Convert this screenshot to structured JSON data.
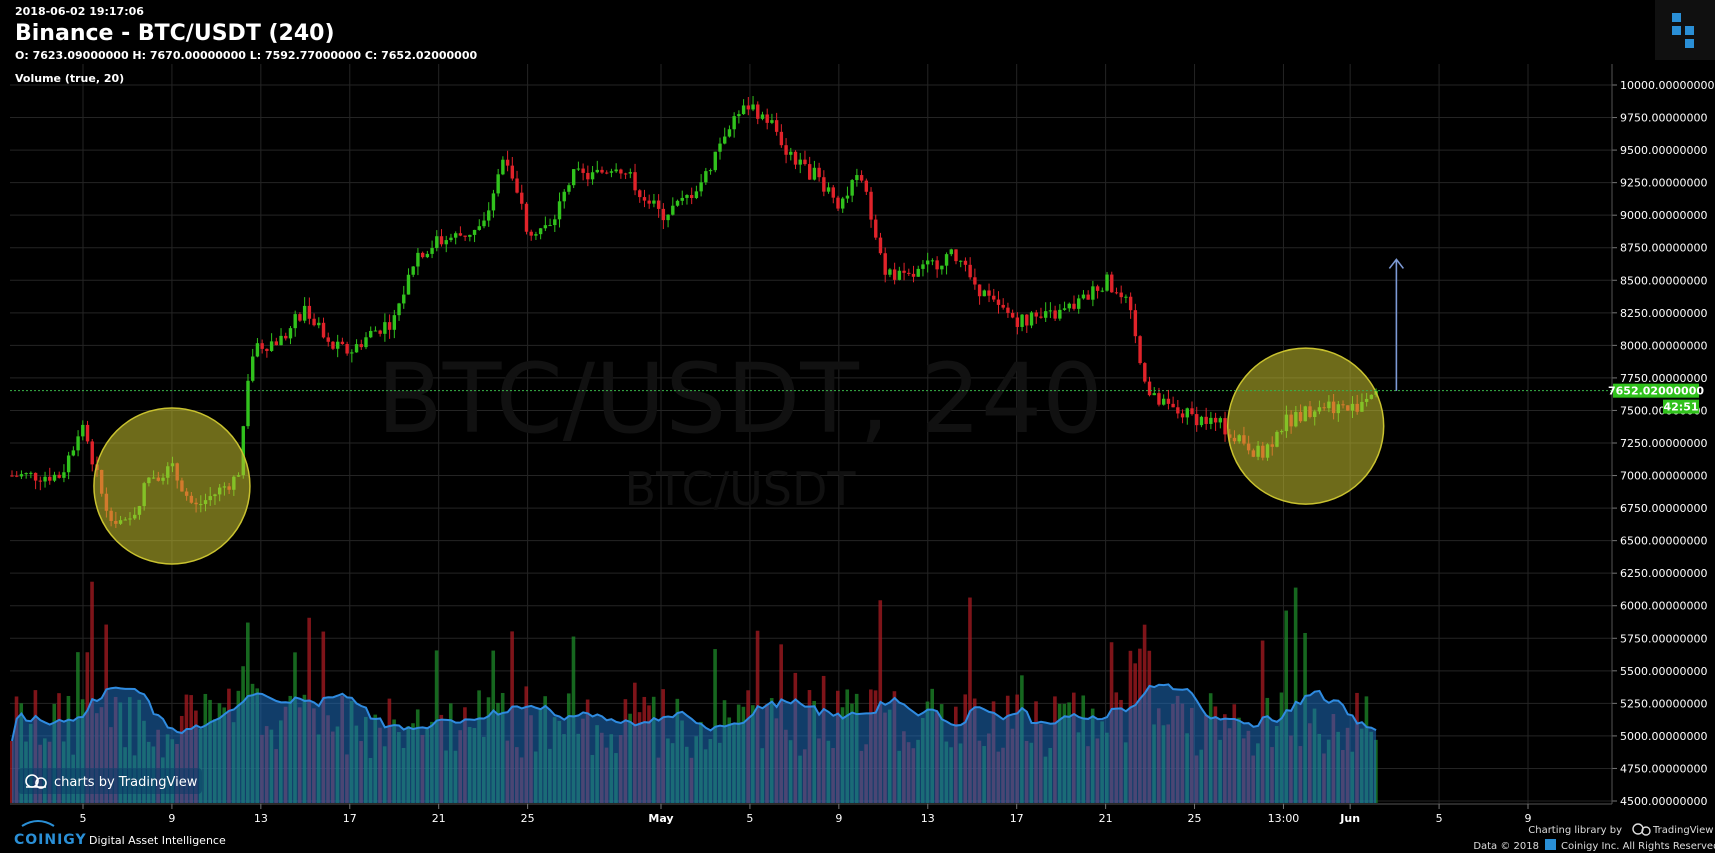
{
  "header": {
    "timestamp": "2018-06-02 19:17:06",
    "title": "Binance - BTC/USDT (240)",
    "ohlc": "O: 7623.09000000 H: 7670.00000000 L: 7592.77000000 C: 7652.02000000",
    "volume_label": "Volume (true, 20)"
  },
  "watermark": {
    "line1": "BTC/USDT, 240",
    "line2": "BTC/USDT"
  },
  "price_badge": {
    "value": "7652.02000000",
    "countdown": "42:51"
  },
  "footer": {
    "brand": "COINIGY",
    "tagline": "Digital Asset Intelligence",
    "charting_library": "Charting library by",
    "tradingview": "TradingView",
    "copyright": "Data © 2018",
    "rights": "Coinigy Inc. All Rights Reserved.",
    "charts_by": "charts by TradingView"
  },
  "colors": {
    "background": "#000000",
    "up": "#31c21d",
    "down": "#e0232a",
    "grid": "#242424",
    "volume_ma_fill": "#1f6fbf",
    "highlight_circle": "#c9c22f",
    "last_price_line": "#39b54a",
    "arrow": "#7d9ad6"
  },
  "icons": [
    "coinigy-logo-icon",
    "tradingview-cloud-icon",
    "coinigy-small-icon"
  ],
  "chart_data": {
    "type": "candlestick",
    "title": "Binance - BTC/USDT (240)",
    "ylim": [
      4500,
      10100
    ],
    "y_ticks": [
      4500,
      4750,
      5000,
      5250,
      5500,
      5750,
      6000,
      6250,
      6500,
      6750,
      7000,
      7250,
      7500,
      7750,
      8000,
      8250,
      8500,
      8750,
      9000,
      9250,
      9500,
      9750,
      10000
    ],
    "y_tick_labels": [
      "4500.00000000",
      "4750.00000000",
      "5000.00000000",
      "5250.00000000",
      "5500.00000000",
      "5750.00000000",
      "6000.00000000",
      "6250.00000000",
      "6500.00000000",
      "6750.00000000",
      "7000.00000000",
      "7250.00000000",
      "7500.00000000",
      "7750.00000000",
      "8000.00000000",
      "8250.00000000",
      "8500.00000000",
      "8750.00000000",
      "9000.00000000",
      "9250.00000000",
      "9500.00000000",
      "9750.00000000",
      "10000.00000000"
    ],
    "x_ticks": [
      {
        "label": "5",
        "date": "2018-04-05"
      },
      {
        "label": "9",
        "date": "2018-04-09"
      },
      {
        "label": "13",
        "date": "2018-04-13"
      },
      {
        "label": "17",
        "date": "2018-04-17"
      },
      {
        "label": "21",
        "date": "2018-04-21"
      },
      {
        "label": "25",
        "date": "2018-04-25"
      },
      {
        "label": "May",
        "date": "2018-05-01"
      },
      {
        "label": "5",
        "date": "2018-05-05"
      },
      {
        "label": "9",
        "date": "2018-05-09"
      },
      {
        "label": "13",
        "date": "2018-05-13"
      },
      {
        "label": "17",
        "date": "2018-05-17"
      },
      {
        "label": "21",
        "date": "2018-05-21"
      },
      {
        "label": "25",
        "date": "2018-05-25"
      },
      {
        "label": "13:00",
        "date": "2018-05-29"
      },
      {
        "label": "Jun",
        "date": "2018-06-01"
      },
      {
        "label": "5",
        "date": "2018-06-05"
      },
      {
        "label": "9",
        "date": "2018-06-09"
      }
    ],
    "last_price": 7652.02,
    "highlights": [
      {
        "center_date": "2018-04-09",
        "center_price": 6920
      },
      {
        "center_date": "2018-05-30",
        "center_price": 7380
      }
    ],
    "arrow": {
      "date": "2018-06-02",
      "from_price": 7650,
      "to_price": 8660
    },
    "price_keypoints": [
      [
        "2018-04-04",
        7000
      ],
      [
        "2018-04-05",
        7400
      ],
      [
        "2018-04-06",
        6750
      ],
      [
        "2018-04-07",
        6600
      ],
      [
        "2018-04-08",
        7000
      ],
      [
        "2018-04-09",
        7050
      ],
      [
        "2018-04-10",
        6750
      ],
      [
        "2018-04-11",
        6870
      ],
      [
        "2018-04-12",
        7000
      ],
      [
        "2018-04-12T12",
        7900
      ],
      [
        "2018-04-13",
        8000
      ],
      [
        "2018-04-14",
        8050
      ],
      [
        "2018-04-15",
        8300
      ],
      [
        "2018-04-16",
        8000
      ],
      [
        "2018-04-17",
        7950
      ],
      [
        "2018-04-18",
        8100
      ],
      [
        "2018-04-19",
        8200
      ],
      [
        "2018-04-20",
        8700
      ],
      [
        "2018-04-21",
        8800
      ],
      [
        "2018-04-22",
        8850
      ],
      [
        "2018-04-23",
        8900
      ],
      [
        "2018-04-24",
        9500
      ],
      [
        "2018-04-25",
        8900
      ],
      [
        "2018-04-26",
        8900
      ],
      [
        "2018-04-27",
        9300
      ],
      [
        "2018-04-28",
        9300
      ],
      [
        "2018-04-29",
        9400
      ],
      [
        "2018-04-30",
        9200
      ],
      [
        "2018-05-01",
        9000
      ],
      [
        "2018-05-02",
        9100
      ],
      [
        "2018-05-03",
        9300
      ],
      [
        "2018-05-04",
        9700
      ],
      [
        "2018-05-05",
        9850
      ],
      [
        "2018-05-06",
        9700
      ],
      [
        "2018-05-07",
        9400
      ],
      [
        "2018-05-08",
        9300
      ],
      [
        "2018-05-09",
        9100
      ],
      [
        "2018-05-10",
        9300
      ],
      [
        "2018-05-11",
        8600
      ],
      [
        "2018-05-12",
        8500
      ],
      [
        "2018-05-13",
        8600
      ],
      [
        "2018-05-14",
        8700
      ],
      [
        "2018-05-15",
        8500
      ],
      [
        "2018-05-16",
        8300
      ],
      [
        "2018-05-17",
        8200
      ],
      [
        "2018-05-18",
        8200
      ],
      [
        "2018-05-19",
        8250
      ],
      [
        "2018-05-20",
        8350
      ],
      [
        "2018-05-21",
        8500
      ],
      [
        "2018-05-22",
        8300
      ],
      [
        "2018-05-23",
        7600
      ],
      [
        "2018-05-24",
        7500
      ],
      [
        "2018-05-25",
        7450
      ],
      [
        "2018-05-26",
        7400
      ],
      [
        "2018-05-27",
        7300
      ],
      [
        "2018-05-28",
        7150
      ],
      [
        "2018-05-29",
        7400
      ],
      [
        "2018-05-30",
        7500
      ],
      [
        "2018-05-31",
        7550
      ],
      [
        "2018-06-01",
        7500
      ],
      [
        "2018-06-02",
        7650
      ]
    ]
  }
}
